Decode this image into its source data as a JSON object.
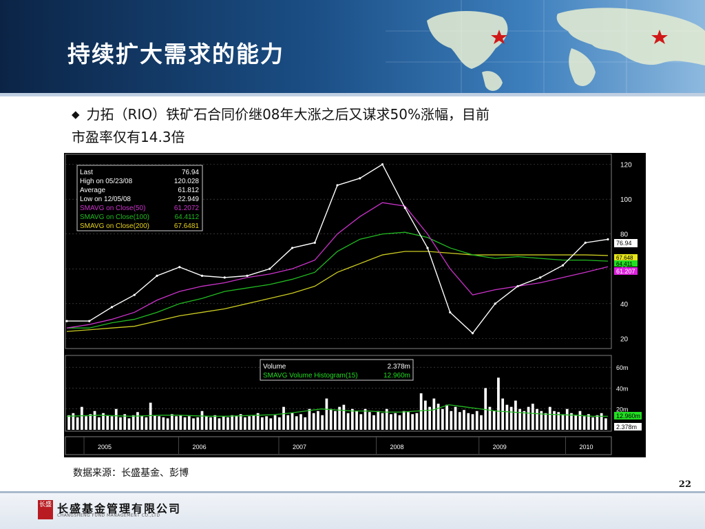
{
  "slide": {
    "title": "持续扩大需求的能力",
    "bullet_line1": "力拓（RIO）铁矿石合同价继08年大涨之后又谋求50%涨幅，目前",
    "bullet_line2": "市盈率仅有14.3倍",
    "source_note": "数据来源：长盛基金、彭博",
    "page_number": "22",
    "company_cn": "长盛基金管理有限公司",
    "company_en": "CHANGSHENG FUND MANAGEMENT CO.,LTD",
    "logo_text": "长盛"
  },
  "colors": {
    "header_dark": "#0b2446",
    "header_light": "#8db9df",
    "price_line": "#ffffff",
    "sma50": "#cc33cc",
    "sma100": "#22bb22",
    "sma200": "#cccc22",
    "volume_bar": "#ffffff",
    "volume_sma": "#22bb22"
  },
  "chart_data": {
    "type": "line",
    "x": [
      "2004-09",
      "2005-01",
      "2005-06",
      "2005-09",
      "2006-01",
      "2006-05",
      "2006-07",
      "2006-10",
      "2007-01",
      "2007-04",
      "2007-07",
      "2007-10",
      "2008-01",
      "2008-03",
      "2008-05",
      "2008-07",
      "2008-09",
      "2008-11",
      "2008-12",
      "2009-03",
      "2009-05",
      "2009-08",
      "2009-10",
      "2010-01",
      "2010-03"
    ],
    "xlabel_ticks": [
      "2005",
      "2006",
      "2007",
      "2008",
      "2009",
      "2010"
    ],
    "y_ticks": [
      20,
      40,
      60,
      80,
      100,
      120
    ],
    "ylim": [
      15,
      125
    ],
    "series": [
      {
        "name": "Last",
        "values": [
          30,
          30,
          38,
          45,
          56,
          61,
          56,
          55,
          56,
          60,
          72,
          75,
          108,
          112,
          120,
          95,
          72,
          35,
          23,
          40,
          50,
          55,
          62,
          75,
          76.94
        ]
      },
      {
        "name": "SMAVG on Close(50)",
        "values": [
          26,
          28,
          31,
          35,
          42,
          47,
          50,
          52,
          55,
          57,
          60,
          65,
          80,
          90,
          98,
          96,
          80,
          60,
          45,
          48,
          50,
          52,
          55,
          58,
          61.21
        ]
      },
      {
        "name": "SMAVG on Close(100)",
        "values": [
          26,
          26,
          29,
          31,
          35,
          40,
          43,
          47,
          49,
          51,
          54,
          58,
          70,
          77,
          80,
          81,
          78,
          72,
          68,
          66,
          67,
          66,
          65,
          65,
          64.41
        ]
      },
      {
        "name": "SMAVG on Close(200)",
        "values": [
          24,
          25,
          26,
          27,
          30,
          33,
          35,
          37,
          40,
          43,
          46,
          50,
          58,
          63,
          68,
          70,
          70,
          69,
          68,
          68,
          68,
          68,
          68,
          68,
          67.65
        ]
      }
    ],
    "legend": {
      "last_label": "Last",
      "last_value": "76.94",
      "high_label": "High on 05/23/08",
      "high_value": "120.028",
      "avg_label": "Average",
      "avg_value": "61.812",
      "low_label": "Low on 12/05/08",
      "low_value": "22.949",
      "sma50_label": "SMAVG on Close(50)",
      "sma50_value": "61.2072",
      "sma100_label": "SMAVG on Close(100)",
      "sma100_value": "64.4112",
      "sma200_label": "SMAVG on Close(200)",
      "sma200_value": "67.6481"
    },
    "price_tags": [
      "76.94",
      "67.648",
      "64.411",
      "61.207"
    ],
    "volume": {
      "y_ticks": [
        "60m",
        "40m",
        "20m"
      ],
      "ylim_m": [
        0,
        70
      ],
      "legend_volume_label": "Volume",
      "legend_volume_value": "2.378m",
      "legend_sma_label": "SMAVG Volume Histogram(15)",
      "legend_sma_value": "12.960m",
      "tags": [
        "12.960m",
        "2.378m"
      ],
      "bars_m": [
        14,
        16,
        12,
        22,
        13,
        15,
        18,
        12,
        16,
        14,
        13,
        20,
        12,
        15,
        11,
        14,
        17,
        13,
        12,
        26,
        14,
        13,
        12,
        11,
        15,
        13,
        14,
        12,
        13,
        11,
        12,
        18,
        13,
        12,
        14,
        11,
        13,
        12,
        14,
        13,
        15,
        12,
        13,
        14,
        16,
        12,
        13,
        11,
        14,
        12,
        22,
        14,
        16,
        13,
        15,
        12,
        20,
        16,
        18,
        14,
        30,
        20,
        18,
        22,
        24,
        16,
        20,
        18,
        15,
        20,
        17,
        14,
        18,
        16,
        20,
        15,
        16,
        14,
        18,
        17,
        15,
        16,
        35,
        28,
        22,
        30,
        25,
        20,
        24,
        18,
        22,
        17,
        19,
        16,
        15,
        18,
        14,
        40,
        22,
        18,
        50,
        30,
        24,
        22,
        28,
        20,
        18,
        22,
        25,
        20,
        18,
        16,
        22,
        18,
        17,
        15,
        20,
        16,
        14,
        18,
        13,
        15,
        12,
        14,
        16,
        11
      ],
      "sma_m": [
        13,
        13.5,
        14,
        13.5,
        13,
        13.5,
        14,
        14,
        13.5,
        13,
        13,
        13.5,
        14,
        14.5,
        16,
        18,
        20,
        19,
        18,
        18,
        17,
        17,
        18,
        19,
        24,
        22,
        20,
        18,
        17,
        16,
        15,
        14.5,
        14,
        13,
        12.96
      ]
    }
  }
}
